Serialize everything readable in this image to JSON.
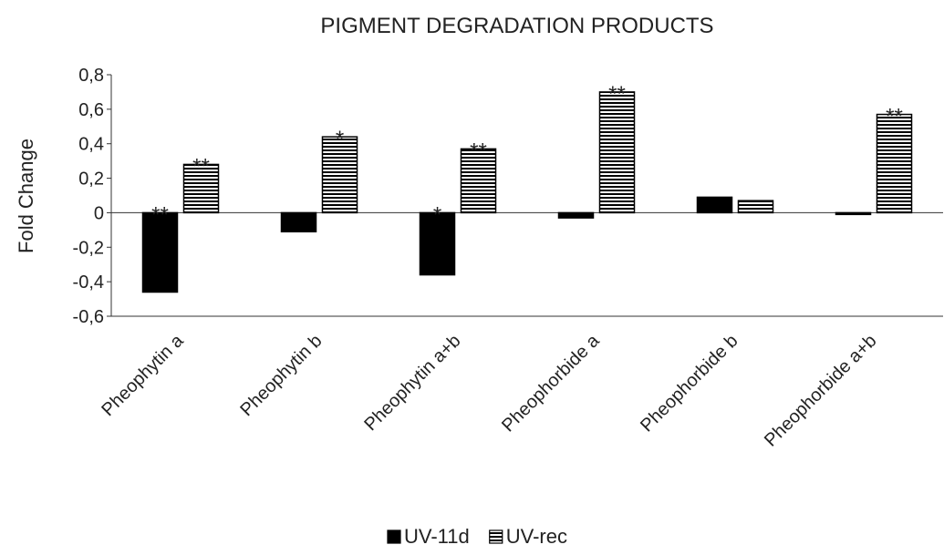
{
  "chart_data": {
    "type": "bar",
    "title": "PIGMENT DEGRADATION PRODUCTS",
    "y_label": "Fold Change",
    "categories": [
      "Pheophytin a",
      "Pheophytin b",
      "Pheophytin a+b",
      "Pheophorbide a",
      "Pheophorbide b",
      "Pheophorbide a+b"
    ],
    "series": [
      {
        "name": "UV-11d",
        "color": "#000000",
        "hatch": null,
        "values": [
          -0.46,
          -0.11,
          -0.36,
          -0.03,
          0.09,
          -0.01
        ],
        "annotations": [
          "**",
          null,
          "*",
          null,
          null,
          null
        ]
      },
      {
        "name": "UV-rec",
        "color": "#000000",
        "hatch": "horizontal",
        "values": [
          0.28,
          0.44,
          0.37,
          0.7,
          0.07,
          0.57
        ],
        "annotations": [
          "**",
          "*",
          "**",
          "**",
          null,
          "**"
        ]
      }
    ],
    "ylim": [
      -0.6,
      0.8
    ],
    "yticks": [
      {
        "value": -0.6,
        "label": "-0,6"
      },
      {
        "value": -0.4,
        "label": "-0,4"
      },
      {
        "value": -0.2,
        "label": "-0,2"
      },
      0,
      {
        "value": 0.2,
        "label": "0,2"
      },
      {
        "value": 0.4,
        "label": "0,4"
      },
      {
        "value": 0.6,
        "label": "0,6"
      },
      {
        "value": 0.8,
        "label": "0,8"
      }
    ],
    "legend": "bottom",
    "grid": false
  }
}
